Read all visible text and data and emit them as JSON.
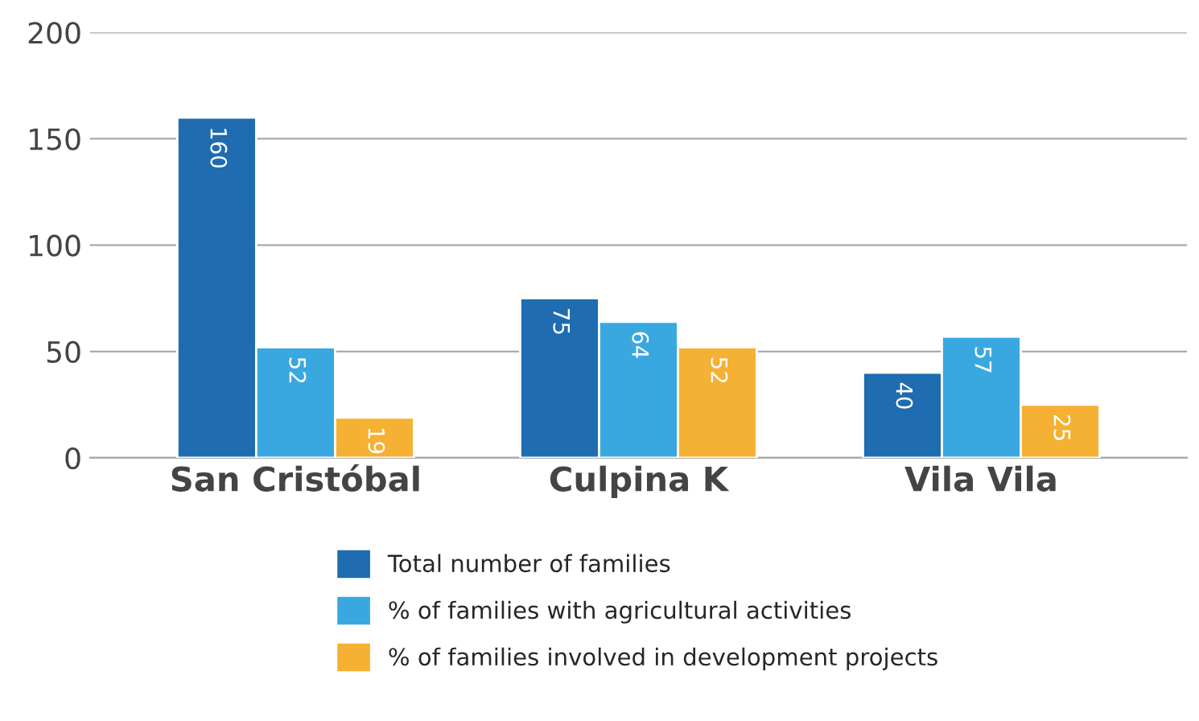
{
  "chart_data": {
    "type": "bar",
    "categories": [
      "San Cristóbal",
      "Culpina K",
      "Vila Vila"
    ],
    "series": [
      {
        "name": "Total number of families",
        "color": "#1f6cb0",
        "values": [
          160,
          75,
          40
        ]
      },
      {
        "name": "% of families with agricultural activities",
        "color": "#3aa8e0",
        "values": [
          52,
          64,
          57
        ]
      },
      {
        "name": "% of families involved in development projects",
        "color": "#f5b133",
        "values": [
          19,
          52,
          25
        ]
      }
    ],
    "ylim": [
      0,
      200
    ],
    "yticks": [
      0,
      50,
      100,
      150,
      200
    ],
    "grid": "y",
    "data_labels": true,
    "legend": "bottom"
  }
}
